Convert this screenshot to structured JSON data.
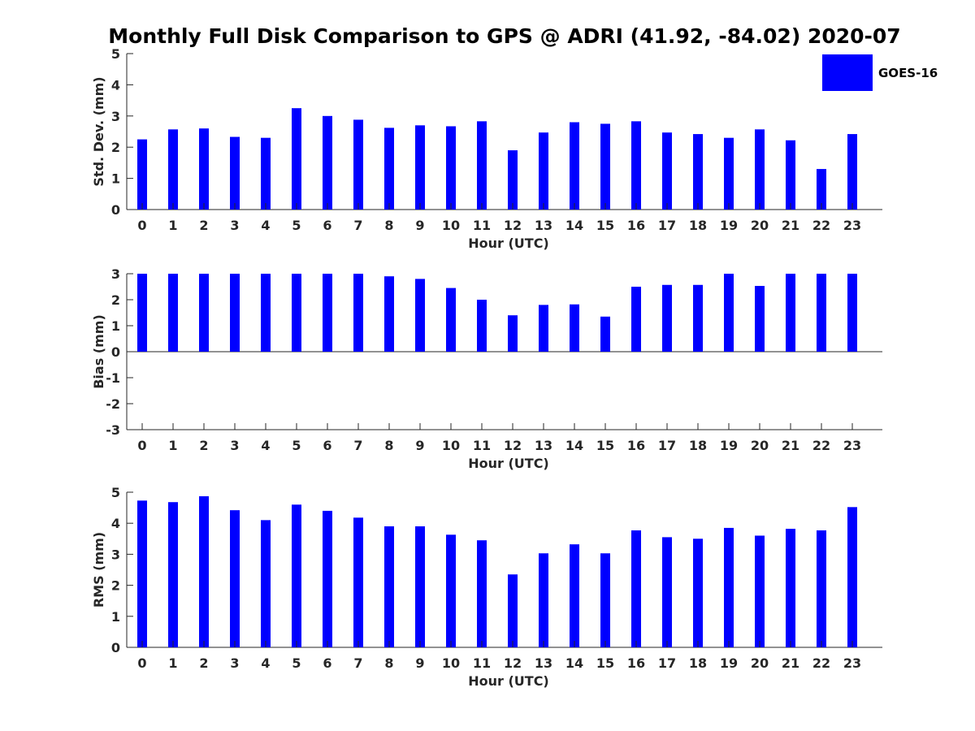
{
  "figure": {
    "title": "Monthly Full Disk Comparison to GPS @ ADRI (41.92, -84.02) 2020-07",
    "legend": {
      "label": "GOES-16",
      "color": "#0000ff"
    }
  },
  "chart_data": [
    {
      "type": "bar",
      "categories": [
        "0",
        "1",
        "2",
        "3",
        "4",
        "5",
        "6",
        "7",
        "8",
        "9",
        "10",
        "11",
        "12",
        "13",
        "14",
        "15",
        "16",
        "17",
        "18",
        "19",
        "20",
        "21",
        "22",
        "23"
      ],
      "values": [
        2.25,
        2.57,
        2.6,
        2.33,
        2.3,
        3.25,
        3.0,
        2.88,
        2.62,
        2.7,
        2.67,
        2.83,
        1.9,
        2.47,
        2.8,
        2.75,
        2.83,
        2.47,
        2.42,
        2.3,
        2.57,
        2.22,
        1.3,
        2.42
      ],
      "xlabel": "Hour (UTC)",
      "ylabel": "Std. Dev. (mm)",
      "ylim": [
        0,
        5
      ],
      "yticks": [
        0,
        1,
        2,
        3,
        4,
        5
      ],
      "grid": false,
      "color": "#0000ff"
    },
    {
      "type": "bar",
      "categories": [
        "0",
        "1",
        "2",
        "3",
        "4",
        "5",
        "6",
        "7",
        "8",
        "9",
        "10",
        "11",
        "12",
        "13",
        "14",
        "15",
        "16",
        "17",
        "18",
        "19",
        "20",
        "21",
        "22",
        "23"
      ],
      "values": [
        3.0,
        3.0,
        3.0,
        3.0,
        3.0,
        3.0,
        3.0,
        3.0,
        2.9,
        2.8,
        2.45,
        2.0,
        1.4,
        1.8,
        1.82,
        1.35,
        2.5,
        2.57,
        2.57,
        3.0,
        2.53,
        3.0,
        3.0,
        3.0
      ],
      "xlabel": "Hour (UTC)",
      "ylabel": "Bias (mm)",
      "ylim": [
        -3,
        3
      ],
      "yticks": [
        -3,
        -2,
        -1,
        0,
        1,
        2,
        3
      ],
      "grid": false,
      "color": "#0000ff"
    },
    {
      "type": "bar",
      "categories": [
        "0",
        "1",
        "2",
        "3",
        "4",
        "5",
        "6",
        "7",
        "8",
        "9",
        "10",
        "11",
        "12",
        "13",
        "14",
        "15",
        "16",
        "17",
        "18",
        "19",
        "20",
        "21",
        "22",
        "23"
      ],
      "values": [
        4.73,
        4.68,
        4.87,
        4.42,
        4.1,
        4.6,
        4.4,
        4.18,
        3.9,
        3.9,
        3.63,
        3.45,
        2.35,
        3.03,
        3.32,
        3.03,
        3.77,
        3.55,
        3.5,
        3.85,
        3.6,
        3.82,
        3.77,
        4.52
      ],
      "xlabel": "Hour (UTC)",
      "ylabel": "RMS (mm)",
      "ylim": [
        0,
        5
      ],
      "yticks": [
        0,
        1,
        2,
        3,
        4,
        5
      ],
      "grid": false,
      "color": "#0000ff"
    }
  ]
}
